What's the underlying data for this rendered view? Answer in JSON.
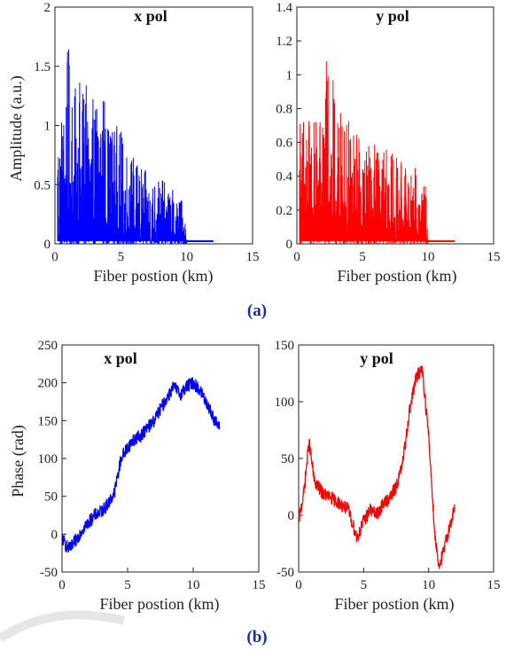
{
  "captions": {
    "top": "(a)",
    "bottom": "(b)"
  },
  "chart_data": [
    {
      "type": "line",
      "title": "x pol",
      "xlabel": "Fiber postion (km)",
      "ylabel": "Amplitude (a.u.)",
      "xlim": [
        0,
        15
      ],
      "ylim": [
        0,
        2
      ],
      "xticks": [
        "0",
        "5",
        "10",
        "15"
      ],
      "yticks": [
        "0",
        "0.5",
        "1",
        "1.5",
        "2"
      ],
      "color": "#0000ff",
      "series": [
        {
          "x": [
            0.2,
            0.6,
            1.0,
            1.5,
            2.0,
            2.5,
            3.0,
            3.4,
            4.0,
            5.0,
            6.0,
            7.0,
            8.0,
            9.0,
            9.8,
            10.0,
            11.0,
            12.0
          ],
          "values": [
            1.18,
            1.2,
            1.68,
            1.3,
            1.45,
            1.3,
            1.2,
            1.61,
            1.1,
            0.95,
            0.75,
            0.6,
            0.55,
            0.45,
            0.38,
            0.02,
            0.02,
            0.02
          ]
        }
      ]
    },
    {
      "type": "line",
      "title": "y pol",
      "xlabel": "Fiber postion (km)",
      "ylabel": "",
      "xlim": [
        0,
        15
      ],
      "ylim": [
        0,
        1.4
      ],
      "xticks": [
        "0",
        "5",
        "10",
        "15"
      ],
      "yticks": [
        "0",
        "0.2",
        "0.4",
        "0.6",
        "0.8",
        "1",
        "1.2",
        "1.4"
      ],
      "color": "#ff0000",
      "series": [
        {
          "x": [
            0.2,
            0.6,
            1.0,
            1.5,
            2.0,
            2.4,
            3.0,
            4.0,
            5.0,
            6.0,
            7.0,
            8.0,
            9.0,
            9.8,
            10.0,
            11.0,
            12.0
          ],
          "values": [
            0.82,
            0.8,
            0.75,
            0.78,
            0.85,
            1.22,
            0.8,
            0.72,
            0.65,
            0.58,
            0.55,
            0.48,
            0.45,
            0.38,
            0.02,
            0.02,
            0.02
          ]
        }
      ]
    },
    {
      "type": "line",
      "title": "x pol",
      "xlabel": "Fiber postion (km)",
      "ylabel": "Phase (rad)",
      "xlim": [
        0,
        15
      ],
      "ylim": [
        -50,
        250
      ],
      "xticks": [
        "0",
        "5",
        "10",
        "15"
      ],
      "yticks": [
        "-50",
        "0",
        "50",
        "100",
        "150",
        "200",
        "250"
      ],
      "color": "#0000ff",
      "series": [
        {
          "x": [
            0,
            0.3,
            0.6,
            1.0,
            1.5,
            2.0,
            2.5,
            3.0,
            3.5,
            4.0,
            4.5,
            5.0,
            5.5,
            6.0,
            6.5,
            7.0,
            7.5,
            8.0,
            8.5,
            9.0,
            9.5,
            10.0,
            10.5,
            11.0,
            11.5,
            12.0
          ],
          "values": [
            -5,
            -15,
            -20,
            -10,
            5,
            15,
            25,
            30,
            40,
            55,
            100,
            115,
            125,
            130,
            140,
            150,
            165,
            180,
            195,
            185,
            195,
            200,
            190,
            175,
            155,
            140
          ]
        }
      ]
    },
    {
      "type": "line",
      "title": "y pol",
      "xlabel": "Fiber postion (km)",
      "ylabel": "",
      "xlim": [
        0,
        15
      ],
      "ylim": [
        -50,
        150
      ],
      "xticks": [
        "0",
        "5",
        "10",
        "15"
      ],
      "yticks": [
        "-50",
        "0",
        "50",
        "100",
        "150"
      ],
      "color": "#ff0000",
      "series": [
        {
          "x": [
            0,
            0.4,
            0.8,
            1.2,
            1.8,
            2.5,
            3.2,
            3.8,
            4.5,
            5.0,
            5.5,
            6.0,
            6.5,
            7.0,
            7.5,
            8.0,
            8.5,
            9.0,
            9.5,
            10.0,
            10.5,
            10.8,
            11.2,
            11.6,
            12.0
          ],
          "values": [
            -5,
            20,
            65,
            30,
            20,
            15,
            10,
            5,
            -20,
            -5,
            5,
            0,
            10,
            15,
            25,
            45,
            90,
            120,
            130,
            70,
            -20,
            -45,
            -30,
            -10,
            5
          ]
        }
      ]
    }
  ]
}
